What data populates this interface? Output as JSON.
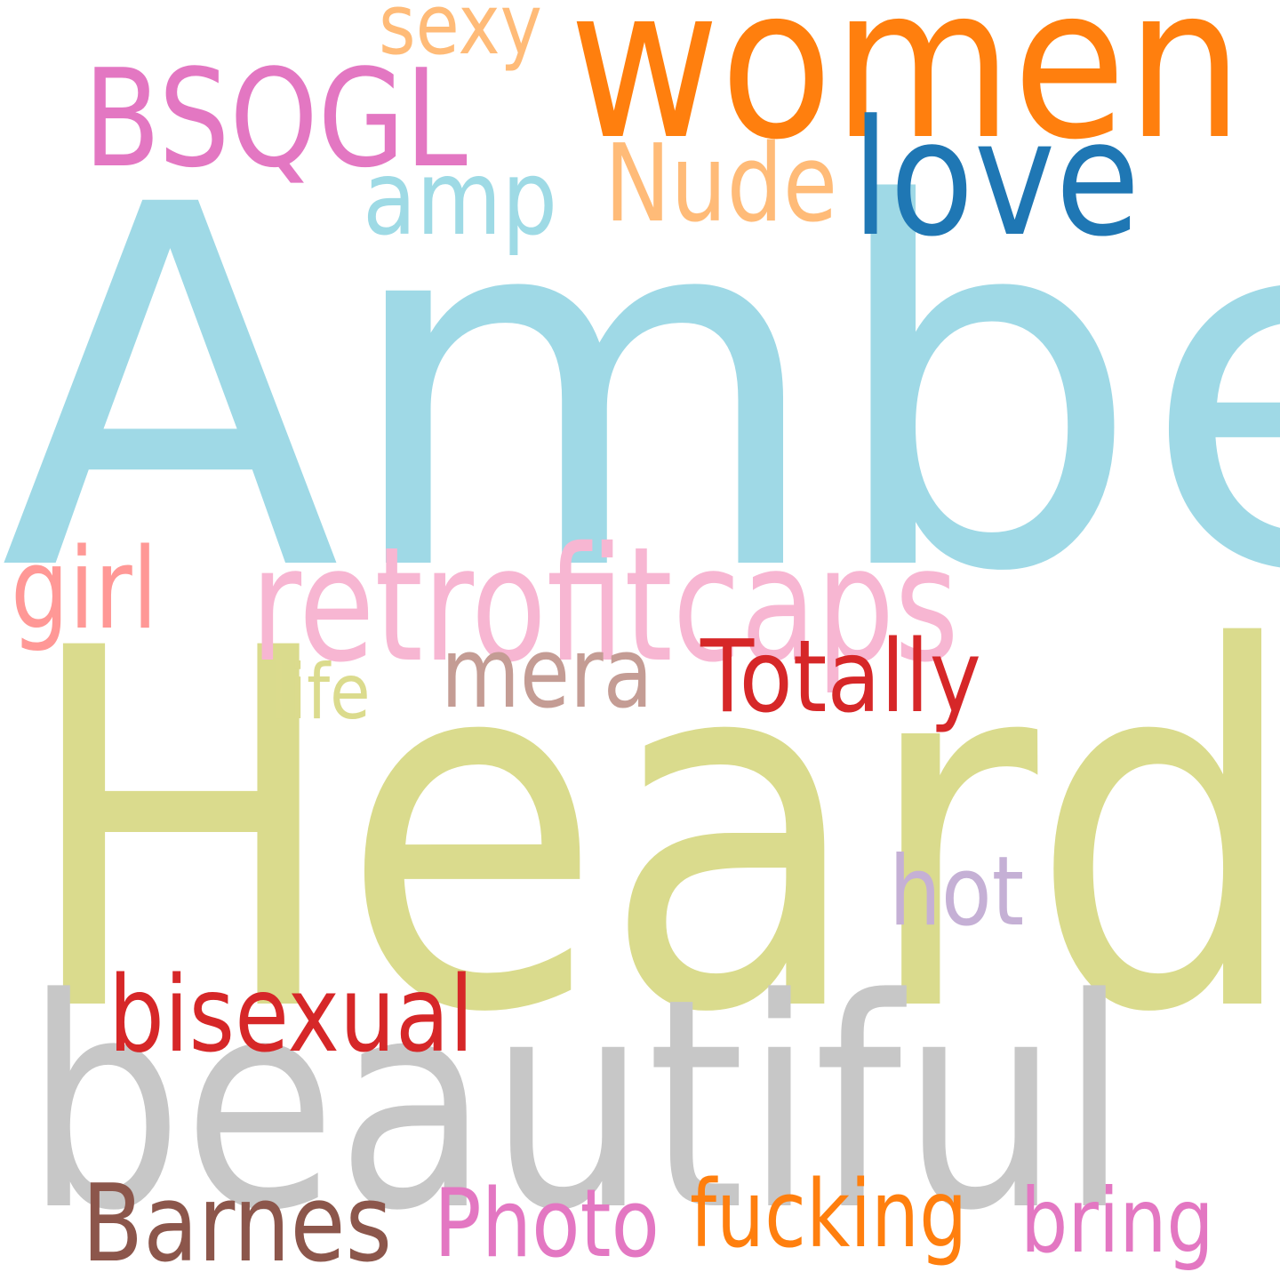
{
  "word_cloud": {
    "background_color": "#ffffff",
    "words": [
      {
        "text": "Amber",
        "color": "#9fd9e6"
      },
      {
        "text": "Heard",
        "color": "#dadb8d"
      },
      {
        "text": "beautiful",
        "color": "#c7c7c7"
      },
      {
        "text": "women",
        "color": "#ff7f0e"
      },
      {
        "text": "retrofitcaps",
        "color": "#f7b6d2"
      },
      {
        "text": "love",
        "color": "#1f77b4"
      },
      {
        "text": "BSQGL",
        "color": "#e377c2"
      },
      {
        "text": "Nude",
        "color": "#ffbb78"
      },
      {
        "text": "amp",
        "color": "#9edae5"
      },
      {
        "text": "sexy",
        "color": "#ffbb78"
      },
      {
        "text": "girl",
        "color": "#ff9896"
      },
      {
        "text": "mera",
        "color": "#c49c94"
      },
      {
        "text": "Totally",
        "color": "#d62728"
      },
      {
        "text": "life",
        "color": "#dbdb8d"
      },
      {
        "text": "hot",
        "color": "#c5b0d5"
      },
      {
        "text": "bisexual",
        "color": "#d62728"
      },
      {
        "text": "Barnes",
        "color": "#8c564b"
      },
      {
        "text": "Photo",
        "color": "#e377c2"
      },
      {
        "text": "fucking",
        "color": "#ff7f0e"
      },
      {
        "text": "bring",
        "color": "#e377c2"
      }
    ]
  }
}
